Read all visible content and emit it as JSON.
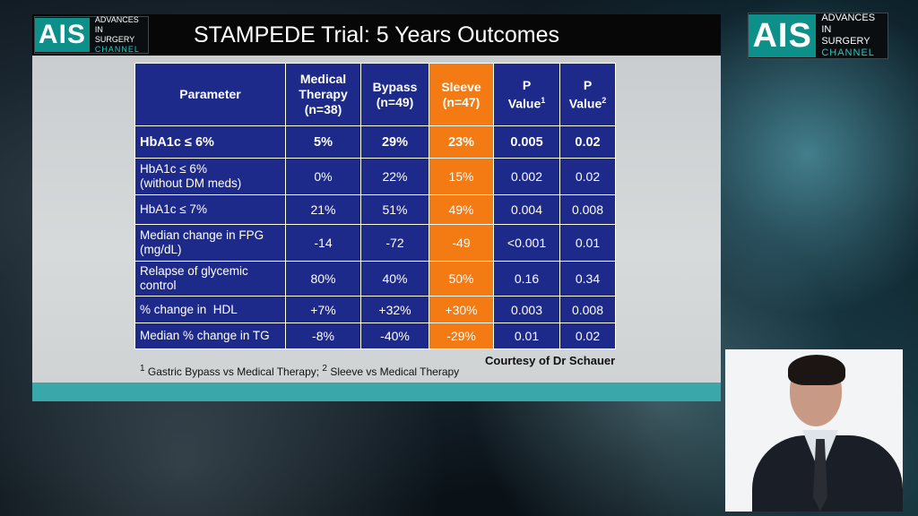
{
  "branding": {
    "logo_mark": "AIS",
    "logo_line1": "ADVANCES",
    "logo_line2": "IN SURGERY",
    "logo_line3": "CHANNEL"
  },
  "slide": {
    "title": "STAMPEDE Trial: 5 Years Outcomes",
    "headers": {
      "parameter": "Parameter",
      "medical_l1": "Medical",
      "medical_l2": "Therapy",
      "medical_l3": "(n=38)",
      "bypass_l1": "Bypass",
      "bypass_l2": "(n=49)",
      "sleeve_l1": "Sleeve",
      "sleeve_l2": "(n=47)",
      "p1_l1": "P",
      "p1_l2": "Value",
      "p1_sup": "1",
      "p2_l1": "P",
      "p2_l2": "Value",
      "p2_sup": "2"
    },
    "rows": [
      {
        "param_l1": "HbA1c ≤ 6%",
        "param_l2": "",
        "medical": "5%",
        "bypass": "29%",
        "sleeve": "23%",
        "p1": "0.005",
        "p2": "0.02"
      },
      {
        "param_l1": "HbA1c ≤ 6%",
        "param_l2": "(without DM meds)",
        "medical": "0%",
        "bypass": "22%",
        "sleeve": "15%",
        "p1": "0.002",
        "p2": "0.02"
      },
      {
        "param_l1": "HbA1c ≤ 7%",
        "param_l2": "",
        "medical": "21%",
        "bypass": "51%",
        "sleeve": "49%",
        "p1": "0.004",
        "p2": "0.008"
      },
      {
        "param_l1": "Median change in FPG",
        "param_l2": "(mg/dL)",
        "medical": "-14",
        "bypass": "-72",
        "sleeve": "-49",
        "p1": "<0.001",
        "p2": "0.01"
      },
      {
        "param_l1": "Relapse of glycemic",
        "param_l2": "control",
        "medical": "80%",
        "bypass": "40%",
        "sleeve": "50%",
        "p1": "0.16",
        "p2": "0.34"
      },
      {
        "param_l1": "% change in  HDL",
        "param_l2": "",
        "medical": "+7%",
        "bypass": "+32%",
        "sleeve": "+30%",
        "p1": "0.003",
        "p2": "0.008"
      },
      {
        "param_l1": "Median % change in TG",
        "param_l2": "",
        "medical": "-8%",
        "bypass": "-40%",
        "sleeve": "-29%",
        "p1": "0.01",
        "p2": "0.02"
      }
    ],
    "footnote_sup1": "1",
    "footnote_text1": " Gastric Bypass vs Medical Therapy; ",
    "footnote_sup2": "2",
    "footnote_text2": " Sleeve vs Medical Therapy",
    "courtesy": "Courtesy of Dr Schauer"
  },
  "colors": {
    "table_blue": "#1d2a8a",
    "sleeve_orange": "#f47a14",
    "brand_teal": "#0d8f8a"
  }
}
